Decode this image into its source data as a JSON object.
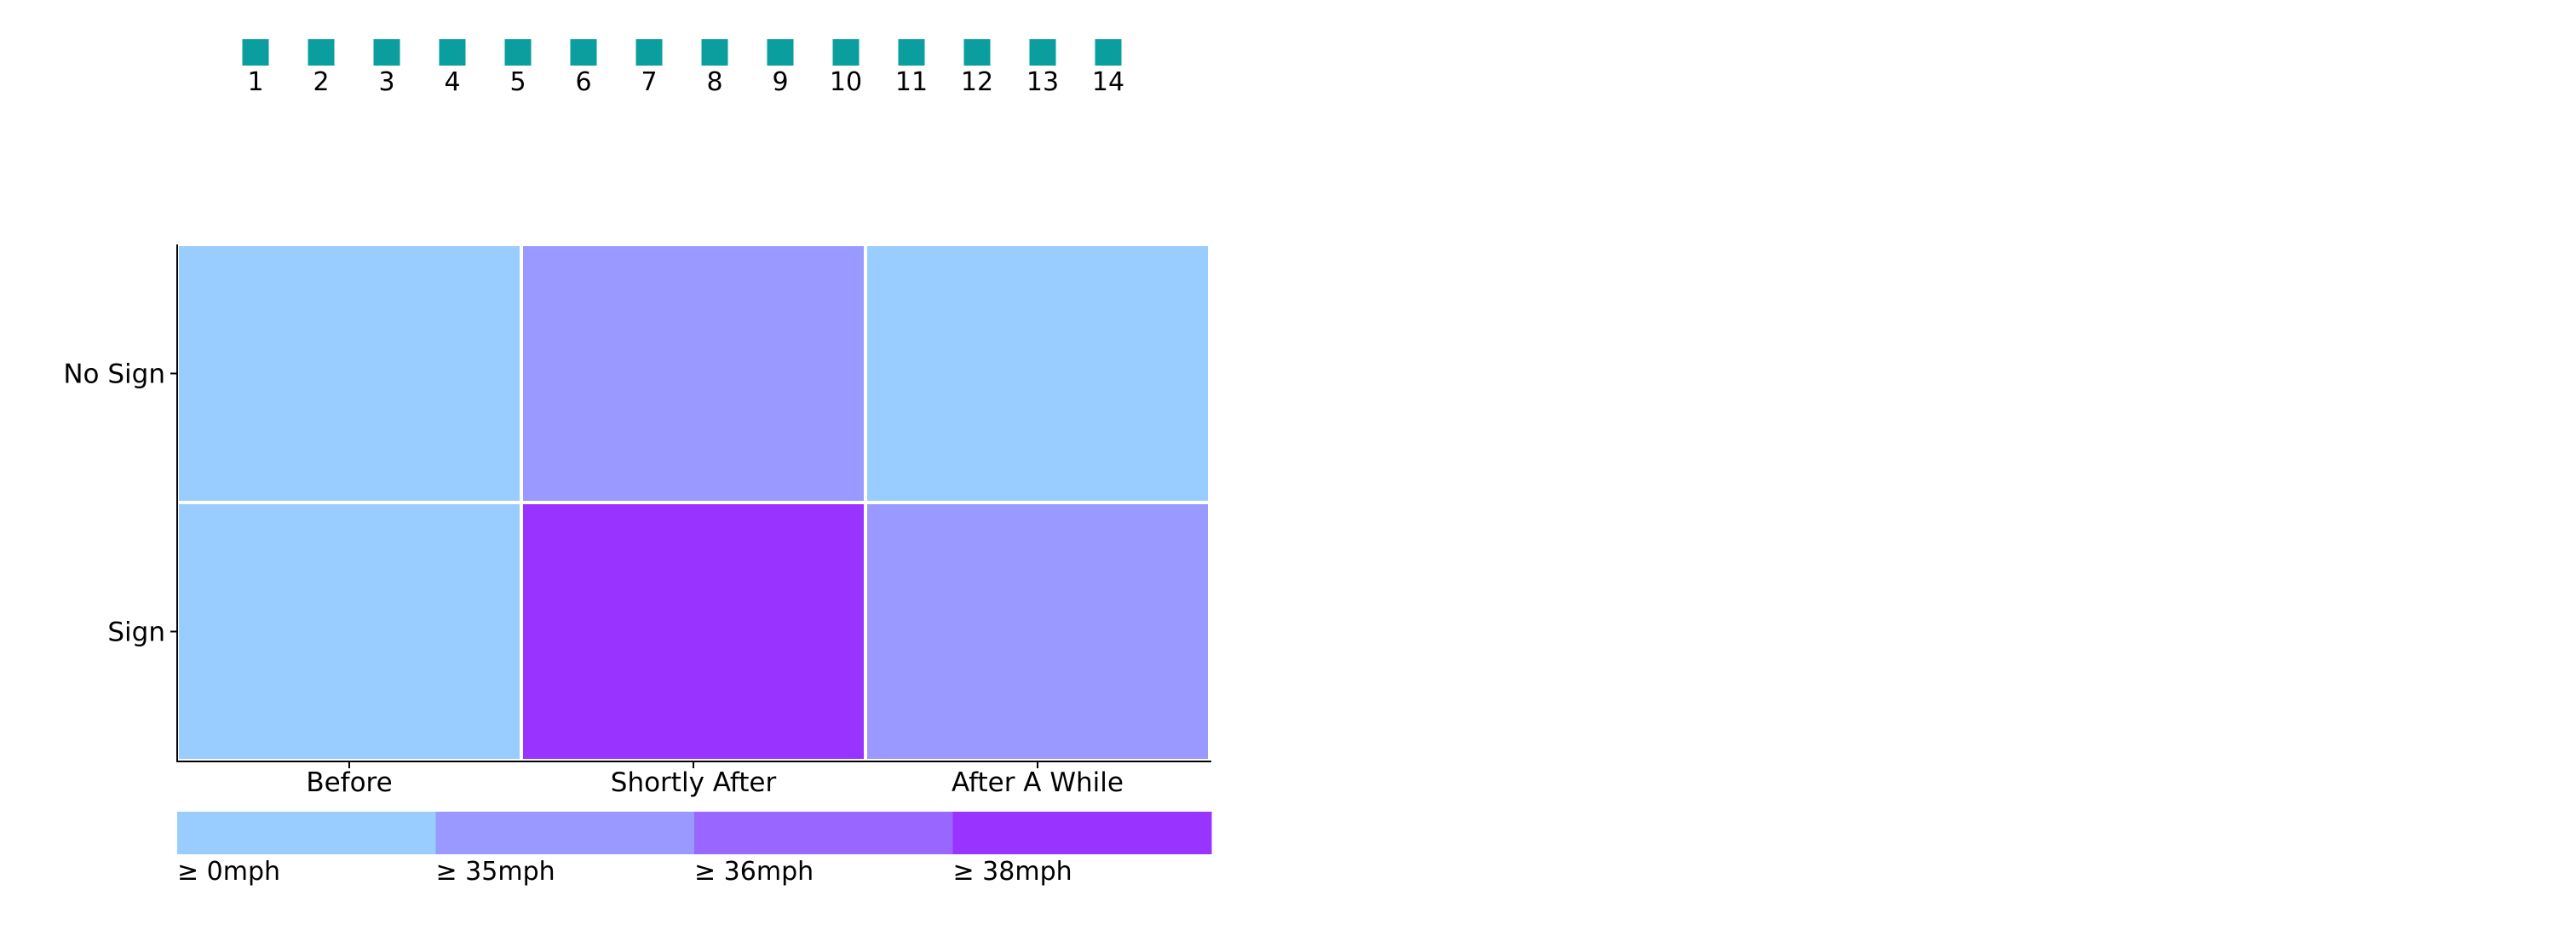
{
  "chart_data": {
    "type": "heatmap",
    "title": "",
    "xlabel": "",
    "ylabel": "",
    "pages": [
      "1",
      "2",
      "3",
      "4",
      "5",
      "6",
      "7",
      "8",
      "9",
      "10",
      "11",
      "12",
      "13",
      "14"
    ],
    "x_categories": [
      "Before",
      "Shortly After",
      "After A While"
    ],
    "y_categories": [
      "No Sign",
      "Sign"
    ],
    "cells": [
      {
        "row": "No Sign",
        "col": "Before",
        "bin": 0
      },
      {
        "row": "No Sign",
        "col": "Shortly After",
        "bin": 1
      },
      {
        "row": "No Sign",
        "col": "After A While",
        "bin": 0
      },
      {
        "row": "Sign",
        "col": "Before",
        "bin": 0
      },
      {
        "row": "Sign",
        "col": "Shortly After",
        "bin": 3
      },
      {
        "row": "Sign",
        "col": "After A While",
        "bin": 1
      }
    ],
    "legend": {
      "bins": [
        {
          "label": "≥ 0mph",
          "color": "#99ccff"
        },
        {
          "label": "≥ 35mph",
          "color": "#9999ff"
        },
        {
          "label": "≥ 36mph",
          "color": "#9966ff"
        },
        {
          "label": "≥ 38mph",
          "color": "#9933ff"
        }
      ]
    },
    "page_marker_color": "#0a9e9e",
    "grid": false,
    "legend_position": "bottom"
  }
}
